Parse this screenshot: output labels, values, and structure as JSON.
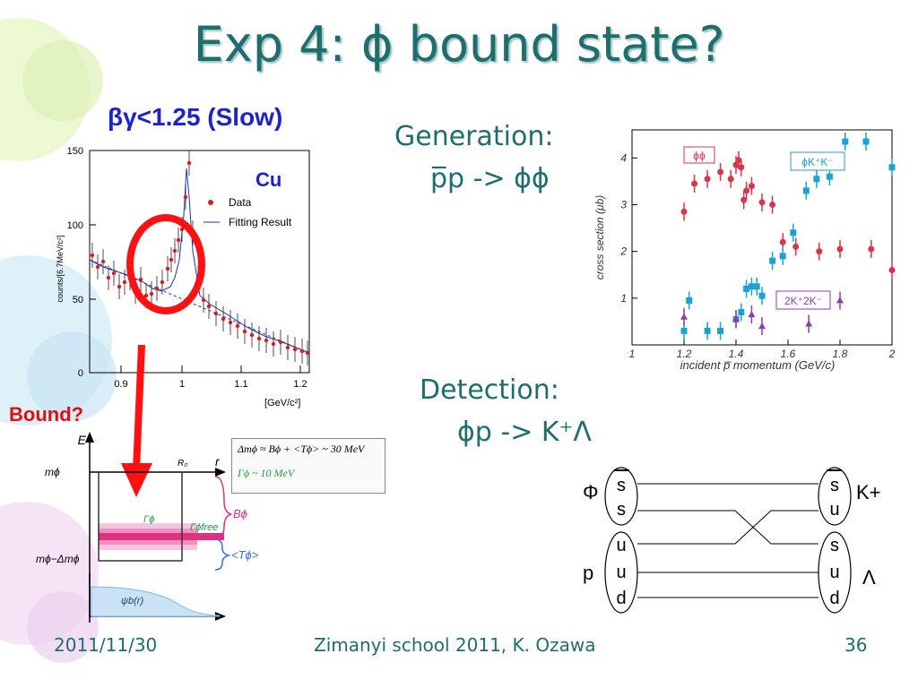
{
  "slide": {
    "title": "Exp 4: ϕ bound state?",
    "footer_date": "2011/11/30",
    "footer_center": "Zimanyi school 2011, K. Ozawa",
    "footer_page": "36"
  },
  "left_plot": {
    "cut_label": "βγ<1.25 (Slow)",
    "target": "Cu",
    "legend": [
      "Data",
      "Fitting Result"
    ],
    "ylabel": "counts/[6.7MeV/c²]",
    "xlabel": "[GeV/c²]",
    "xticks": [
      "0.9",
      "1",
      "1.1",
      "1.2"
    ],
    "yticks": [
      "0",
      "50",
      "100",
      "150"
    ]
  },
  "bound_label": "Bound?",
  "potential": {
    "E": "E",
    "r": "r",
    "R0": "R₀",
    "m_phi": "mϕ",
    "m_phi_minus": "mϕ−Δmϕ",
    "Gamma": "Γϕ",
    "Gamma_free": "Γϕfree",
    "B": "Bϕ",
    "T": "<Tϕ>",
    "psi": "ψb(r)",
    "box_line1": "Δmϕ ≈ Bϕ + <Tϕ> ~ 30 MeV",
    "box_line2": "Γϕ ~ 10 MeV"
  },
  "generation": {
    "label": "Generation:",
    "reaction": "p̅p -> ϕϕ"
  },
  "detection": {
    "label": "Detection:",
    "reaction": "ϕp -> K⁺Λ"
  },
  "xsec_plot": {
    "ylabel": "cross section (μb)",
    "xlabel": "incident p̅ momentum (GeV/c)",
    "xticks": [
      "1",
      "1.2",
      "1.4",
      "1.6",
      "1.8",
      "2"
    ],
    "yticks": [
      "1",
      "2",
      "3",
      "4"
    ],
    "legend_phiphi": "ϕϕ",
    "legend_phiKK": "ϕK⁺K⁻",
    "legend_2K2K": "2K⁺2K⁻"
  },
  "chart_data": {
    "type": "scatter",
    "xlabel": "incident p̅ momentum (GeV/c)",
    "ylabel": "cross section (μb)",
    "xlim": [
      1.0,
      2.0
    ],
    "ylim": [
      0,
      4.6
    ],
    "series": [
      {
        "name": "ϕϕ",
        "color": "#d8344a",
        "x": [
          1.2,
          1.24,
          1.29,
          1.34,
          1.38,
          1.4,
          1.41,
          1.42,
          1.43,
          1.44,
          1.46,
          1.5,
          1.54,
          1.58,
          1.63,
          1.72,
          1.8,
          1.92,
          2.0
        ],
        "y": [
          2.85,
          3.45,
          3.55,
          3.7,
          3.55,
          3.85,
          3.95,
          3.8,
          3.1,
          3.3,
          3.4,
          3.05,
          3.0,
          2.2,
          2.1,
          2.0,
          2.05,
          2.05,
          1.6
        ]
      },
      {
        "name": "ϕK⁺K⁻",
        "color": "#1ba1d6",
        "x": [
          1.2,
          1.22,
          1.29,
          1.34,
          1.4,
          1.42,
          1.44,
          1.46,
          1.48,
          1.5,
          1.54,
          1.58,
          1.62,
          1.67,
          1.71,
          1.76,
          1.82,
          1.9,
          2.0
        ],
        "y": [
          0.3,
          0.95,
          0.3,
          0.3,
          0.55,
          0.7,
          1.2,
          1.25,
          1.25,
          1.05,
          1.8,
          1.9,
          2.4,
          3.3,
          3.55,
          3.6,
          4.35,
          4.35,
          3.8
        ]
      },
      {
        "name": "2K⁺2K⁻",
        "color": "#8a3fa8",
        "x": [
          1.2,
          1.4,
          1.46,
          1.5,
          1.68,
          1.8
        ],
        "y": [
          0.6,
          0.55,
          0.65,
          0.4,
          0.45,
          0.95
        ]
      }
    ]
  },
  "quark_diagram": {
    "phi_label": "Φ",
    "p_label": "p",
    "kplus_label": "K+",
    "lambda_label": "Λ",
    "left_phi": [
      "s",
      "s"
    ],
    "left_p": [
      "u",
      "u",
      "d"
    ],
    "right_k": [
      "s",
      "u"
    ],
    "right_lambda": [
      "s",
      "u",
      "d"
    ]
  }
}
